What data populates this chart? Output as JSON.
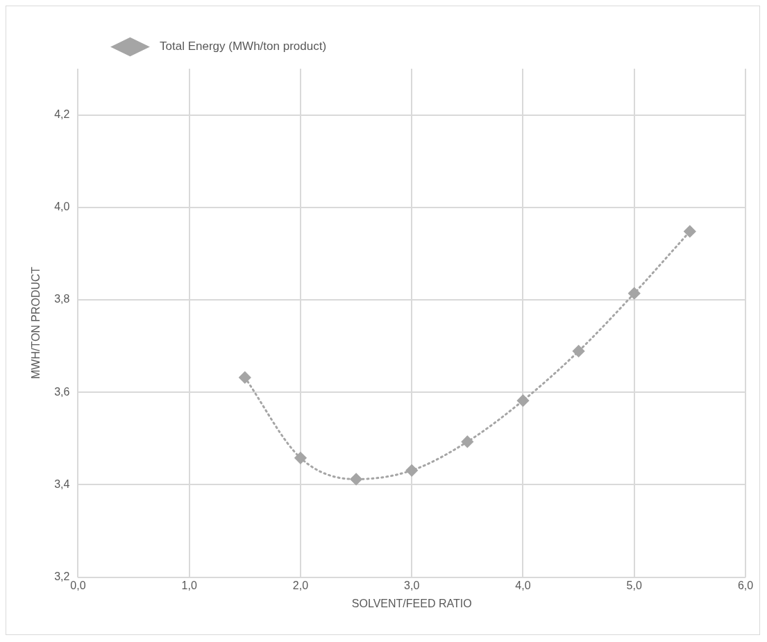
{
  "chart_data": {
    "type": "line",
    "xlabel": "SOLVENT/FEED RATIO",
    "ylabel": "MWH/TON PRODUCT",
    "x": [
      1.5,
      2.0,
      2.5,
      3.0,
      3.5,
      4.0,
      4.5,
      5.0,
      5.5
    ],
    "series": [
      {
        "name": "Total Energy (MWh/ton product)",
        "color": "#a5a5a5",
        "values": [
          3.632,
          3.458,
          3.412,
          3.431,
          3.493,
          3.582,
          3.689,
          3.814,
          3.948
        ]
      }
    ],
    "xlim": [
      0,
      6
    ],
    "xticks": [
      {
        "value": 0,
        "label": "0,0"
      },
      {
        "value": 1,
        "label": "1,0"
      },
      {
        "value": 2,
        "label": "2,0"
      },
      {
        "value": 3,
        "label": "3,0"
      },
      {
        "value": 4,
        "label": "4,0"
      },
      {
        "value": 5,
        "label": "5,0"
      },
      {
        "value": 6,
        "label": "6,0"
      }
    ],
    "ylim": [
      3.2,
      4.3
    ],
    "yticks": [
      {
        "value": 3.2,
        "label": "3,2"
      },
      {
        "value": 3.4,
        "label": "3,4"
      },
      {
        "value": 3.6,
        "label": "3,6"
      },
      {
        "value": 3.8,
        "label": "3,8"
      },
      {
        "value": 4.0,
        "label": "4,0"
      },
      {
        "value": 4.2,
        "label": "4,2"
      }
    ],
    "grid": true,
    "legend": "top left",
    "marker": "diamond",
    "line_style": "dotted"
  }
}
